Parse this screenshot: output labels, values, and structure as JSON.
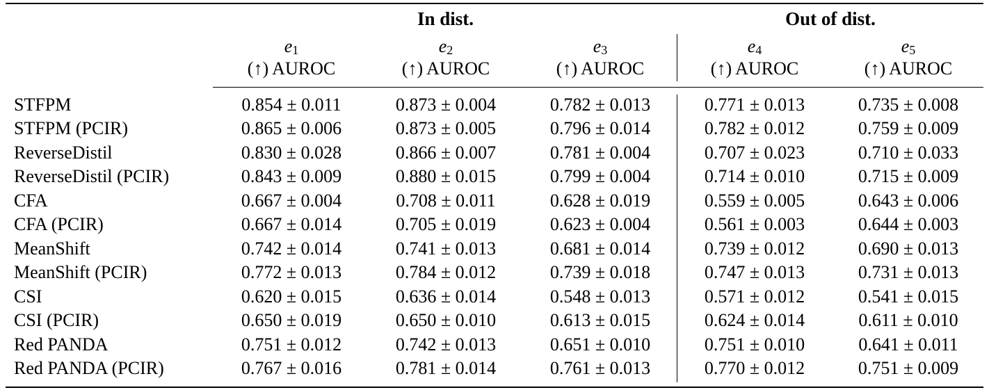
{
  "table": {
    "group_headers": {
      "in_dist": "In dist.",
      "out_dist": "Out of dist."
    },
    "columns": [
      {
        "var": "e",
        "sub": "1",
        "metric": "(↑) AUROC"
      },
      {
        "var": "e",
        "sub": "2",
        "metric": "(↑) AUROC"
      },
      {
        "var": "e",
        "sub": "3",
        "metric": "(↑) AUROC"
      },
      {
        "var": "e",
        "sub": "4",
        "metric": "(↑) AUROC"
      },
      {
        "var": "e",
        "sub": "5",
        "metric": "(↑) AUROC"
      }
    ],
    "rows": [
      {
        "method": "STFPM",
        "values": [
          "0.854 ± 0.011",
          "0.873 ± 0.004",
          "0.782 ± 0.013",
          "0.771 ± 0.013",
          "0.735 ± 0.008"
        ]
      },
      {
        "method": "STFPM (PCIR)",
        "values": [
          "0.865 ± 0.006",
          "0.873 ± 0.005",
          "0.796 ± 0.014",
          "0.782 ± 0.012",
          "0.759 ± 0.009"
        ]
      },
      {
        "method": "ReverseDistil",
        "values": [
          "0.830 ± 0.028",
          "0.866 ± 0.007",
          "0.781 ± 0.004",
          "0.707 ± 0.023",
          "0.710 ± 0.033"
        ]
      },
      {
        "method": "ReverseDistil (PCIR)",
        "values": [
          "0.843 ± 0.009",
          "0.880 ± 0.015",
          "0.799 ± 0.004",
          "0.714 ± 0.010",
          "0.715 ± 0.009"
        ]
      },
      {
        "method": "CFA",
        "values": [
          "0.667 ± 0.004",
          "0.708 ± 0.011",
          "0.628 ± 0.019",
          "0.559 ± 0.005",
          "0.643 ± 0.006"
        ]
      },
      {
        "method": "CFA (PCIR)",
        "values": [
          "0.667 ± 0.014",
          "0.705 ± 0.019",
          "0.623 ± 0.004",
          "0.561 ± 0.003",
          "0.644 ± 0.003"
        ]
      },
      {
        "method": "MeanShift",
        "values": [
          "0.742 ± 0.014",
          "0.741 ± 0.013",
          "0.681 ± 0.014",
          "0.739 ± 0.012",
          "0.690 ± 0.013"
        ]
      },
      {
        "method": "MeanShift (PCIR)",
        "values": [
          "0.772 ± 0.013",
          "0.784 ± 0.012",
          "0.739 ± 0.018",
          "0.747 ± 0.013",
          "0.731 ± 0.013"
        ]
      },
      {
        "method": "CSI",
        "values": [
          "0.620 ± 0.015",
          "0.636 ± 0.014",
          "0.548 ± 0.013",
          "0.571 ± 0.012",
          "0.541 ± 0.015"
        ]
      },
      {
        "method": "CSI (PCIR)",
        "values": [
          "0.650 ± 0.019",
          "0.650 ± 0.010",
          "0.613 ± 0.015",
          "0.624 ± 0.014",
          "0.611 ± 0.010"
        ]
      },
      {
        "method": "Red PANDA",
        "values": [
          "0.751 ± 0.012",
          "0.742 ± 0.013",
          "0.651 ± 0.010",
          "0.751 ± 0.010",
          "0.641 ± 0.011"
        ]
      },
      {
        "method": "Red PANDA (PCIR)",
        "values": [
          "0.767 ± 0.016",
          "0.781 ± 0.014",
          "0.761 ± 0.013",
          "0.770 ± 0.012",
          "0.751 ± 0.009"
        ]
      }
    ]
  }
}
